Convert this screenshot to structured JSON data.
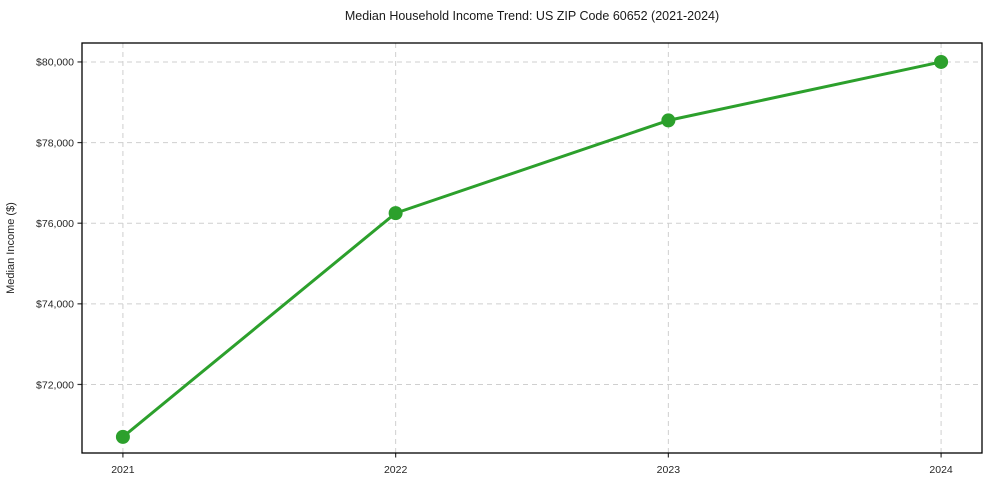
{
  "chart_data": {
    "type": "line",
    "title": "Median Household Income Trend: US ZIP Code 60652 (2021-2024)",
    "xlabel": "",
    "ylabel": "Median Income ($)",
    "categories": [
      "2021",
      "2022",
      "2023",
      "2024"
    ],
    "values": [
      70700,
      76250,
      78550,
      80000
    ],
    "xtick_labels": [
      "2021",
      "2022",
      "2023",
      "2024"
    ],
    "yticks": [
      72000,
      74000,
      76000,
      78000,
      80000
    ],
    "ytick_labels": [
      "$72,000",
      "$74,000",
      "$76,000",
      "$78,000",
      "$80,000"
    ],
    "ylim": [
      70300,
      80470
    ],
    "grid": true,
    "grid_style": "dashed",
    "legend": "none",
    "line_color": "#2ca02c",
    "marker": "circle",
    "marker_size": 7,
    "background": "#ffffff"
  }
}
